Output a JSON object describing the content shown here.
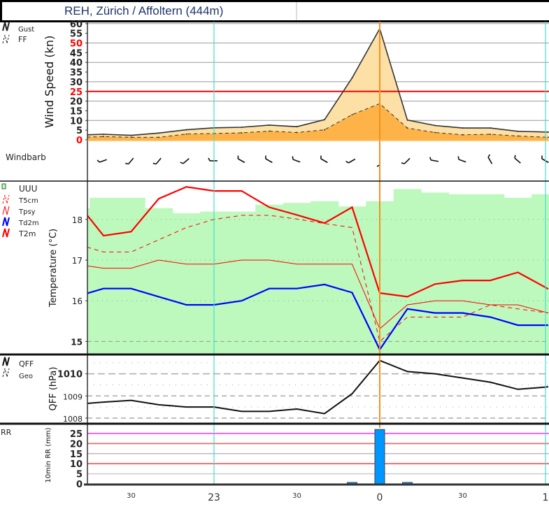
{
  "title": "REH, Zürich / Affoltern (444m)",
  "colors": {
    "hour_line": "#40e0d0",
    "now_line": "#f39020",
    "gust_fill": "#fde0a6",
    "ff_fill": "#fdb347",
    "t2m": "#ff0000",
    "td2m": "#0000ff",
    "uuu": "#bdf9bd",
    "rr_bar": "#0096ff",
    "threshold_red": "#ff0000",
    "threshold_magenta": "#ff00ff"
  },
  "time_axis": {
    "unit": "minutes relative to 00:00",
    "range": [
      -106,
      61
    ],
    "labels": [
      {
        "t": -90,
        "text": "30",
        "major": false
      },
      {
        "t": -60,
        "text": "23",
        "major": true
      },
      {
        "t": -30,
        "text": "30",
        "major": false
      },
      {
        "t": 0,
        "text": "0",
        "major": true
      },
      {
        "t": 30,
        "text": "30",
        "major": false
      },
      {
        "t": 60,
        "text": "1",
        "major": true
      }
    ],
    "hour_lines": [
      -60,
      60
    ],
    "now_line": 0
  },
  "windbarb": {
    "label": "Windbarb",
    "times": [
      -100,
      -90,
      -80,
      -70,
      -60,
      -50,
      -40,
      -30,
      -20,
      -10,
      0,
      10,
      20,
      30,
      40,
      50,
      60
    ],
    "direction_deg": [
      250,
      220,
      220,
      230,
      270,
      300,
      300,
      290,
      300,
      240,
      180,
      225,
      280,
      290,
      330,
      310,
      300
    ]
  },
  "chart_data": [
    {
      "type": "area",
      "id": "wind",
      "ylabel": "Wind Speed (kn)",
      "ylim": [
        0,
        60
      ],
      "yticks": [
        {
          "v": 0,
          "text": "0",
          "red": true
        },
        {
          "v": 5,
          "text": "5"
        },
        {
          "v": 10,
          "text": "10"
        },
        {
          "v": 15,
          "text": "15"
        },
        {
          "v": 20,
          "text": "20"
        },
        {
          "v": 25,
          "text": "25",
          "red": true
        },
        {
          "v": 30,
          "text": "30"
        },
        {
          "v": 35,
          "text": "35"
        },
        {
          "v": 40,
          "text": "40"
        },
        {
          "v": 45,
          "text": "45"
        },
        {
          "v": 50,
          "text": "50",
          "red": true
        },
        {
          "v": 55,
          "text": "55"
        },
        {
          "v": 60,
          "text": "60"
        }
      ],
      "threshold": 25,
      "legend": [
        "Gust",
        "FF"
      ],
      "x": [
        -106,
        -100,
        -90,
        -80,
        -70,
        -60,
        -50,
        -40,
        -30,
        -20,
        -10,
        0,
        10,
        20,
        30,
        40,
        50,
        61
      ],
      "series": [
        {
          "name": "Gust",
          "values": [
            2.6,
            2.9,
            2.3,
            3.5,
            5.2,
            6.2,
            6.5,
            7.6,
            6.8,
            10.4,
            32,
            57.4,
            10.2,
            7.4,
            6.1,
            6.1,
            4.4,
            4.0
          ]
        },
        {
          "name": "FF",
          "values": [
            1.4,
            1.7,
            1.3,
            1.3,
            3.0,
            3.3,
            3.6,
            4.5,
            3.8,
            5.2,
            13,
            18.7,
            6.1,
            3.8,
            2.6,
            2.9,
            2.0,
            1.3
          ]
        }
      ]
    },
    {
      "type": "line",
      "id": "temperature",
      "ylabel": "Temperature (°C)",
      "ylim": [
        14.69,
        18.96
      ],
      "yticks": [
        {
          "v": 15,
          "text": "15",
          "bold": true
        },
        {
          "v": 16,
          "text": "16"
        },
        {
          "v": 17,
          "text": "17"
        },
        {
          "v": 18,
          "text": "18"
        }
      ],
      "legend": [
        "UUU",
        "T5cm",
        "Tpsy",
        "Td2m",
        "T2m"
      ],
      "x": [
        -106,
        -100,
        -90,
        -80,
        -70,
        -60,
        -50,
        -40,
        -30,
        -20,
        -10,
        0,
        10,
        20,
        30,
        40,
        50,
        61
      ],
      "series": [
        {
          "name": "T2m",
          "values": [
            18.11,
            17.6,
            17.7,
            18.51,
            18.8,
            18.7,
            18.7,
            18.3,
            18.11,
            17.91,
            18.3,
            16.19,
            16.1,
            16.41,
            16.5,
            16.5,
            16.7,
            16.29
          ]
        },
        {
          "name": "Tpsy",
          "values": [
            16.86,
            16.8,
            16.8,
            17.0,
            16.9,
            16.9,
            17.0,
            17.0,
            16.9,
            16.9,
            16.9,
            15.31,
            15.9,
            16.0,
            16.0,
            15.9,
            15.9,
            15.7
          ]
        },
        {
          "name": "T5cm",
          "values": [
            17.32,
            17.2,
            17.2,
            17.5,
            17.8,
            18.0,
            18.1,
            18.1,
            18.01,
            17.9,
            17.8,
            15.0,
            15.6,
            15.6,
            15.6,
            15.9,
            15.8,
            15.7
          ]
        },
        {
          "name": "Td2m",
          "values": [
            16.18,
            16.3,
            16.3,
            16.1,
            15.9,
            15.9,
            16.0,
            16.3,
            16.3,
            16.4,
            16.2,
            14.8,
            15.8,
            15.7,
            15.7,
            15.6,
            15.4,
            15.4
          ]
        }
      ],
      "uuu": {
        "unit": "fraction of panel height",
        "x": [
          -110,
          -100,
          -90,
          -80,
          -70,
          -60,
          -50,
          -40,
          -30,
          -20,
          -10,
          0,
          10,
          20,
          30,
          40,
          50,
          60
        ],
        "values": [
          0.84,
          0.9,
          0.9,
          0.84,
          0.81,
          0.82,
          0.82,
          0.86,
          0.87,
          0.88,
          0.85,
          0.88,
          0.95,
          0.93,
          0.92,
          0.92,
          0.9,
          0.92
        ]
      }
    },
    {
      "type": "line",
      "id": "qff",
      "ylabel": "QFF (hPa)",
      "ylim": [
        1007.79,
        1010.84
      ],
      "yticks": [
        {
          "v": 1008,
          "text": "1008"
        },
        {
          "v": 1009,
          "text": "1009"
        },
        {
          "v": 1010,
          "text": "1010",
          "bold": true
        }
      ],
      "legend": [
        "QFF",
        "Geo"
      ],
      "x": [
        -106,
        -100,
        -90,
        -80,
        -70,
        -60,
        -50,
        -40,
        -30,
        -20,
        -10,
        0,
        10,
        20,
        30,
        40,
        50,
        61
      ],
      "series": [
        {
          "name": "QFF",
          "values": [
            1008.66,
            1008.72,
            1008.8,
            1008.6,
            1008.5,
            1008.5,
            1008.3,
            1008.3,
            1008.41,
            1008.2,
            1009.1,
            1010.6,
            1010.1,
            1010.0,
            1009.81,
            1009.62,
            1009.3,
            1009.41
          ]
        }
      ]
    },
    {
      "type": "bar",
      "id": "rr",
      "ylabel": "10min RR (mm)",
      "legend": [
        "RR"
      ],
      "ylim": [
        0,
        27.5
      ],
      "yticks": [
        {
          "v": 0,
          "text": "0"
        },
        {
          "v": 5,
          "text": "5"
        },
        {
          "v": 10,
          "text": "10"
        },
        {
          "v": 15,
          "text": "15"
        },
        {
          "v": 20,
          "text": "20"
        },
        {
          "v": 25,
          "text": "25"
        }
      ],
      "x": [
        -10,
        0,
        10
      ],
      "values": [
        0.7,
        27.0,
        0.7
      ]
    }
  ]
}
